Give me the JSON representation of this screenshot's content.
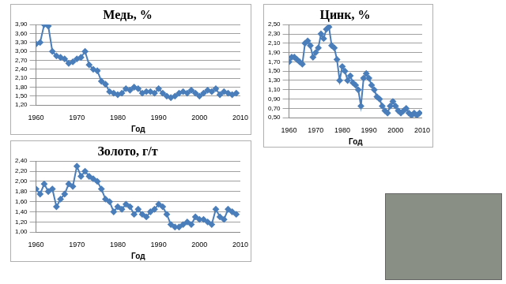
{
  "chart_data": [
    {
      "type": "line",
      "title": "Медь, %",
      "x_label": "Год",
      "x": [
        1960,
        1961,
        1962,
        1963,
        1964,
        1965,
        1966,
        1967,
        1968,
        1969,
        1970,
        1971,
        1972,
        1973,
        1974,
        1975,
        1976,
        1977,
        1978,
        1979,
        1980,
        1981,
        1982,
        1983,
        1984,
        1985,
        1986,
        1987,
        1988,
        1989,
        1990,
        1991,
        1992,
        1993,
        1994,
        1995,
        1996,
        1997,
        1998,
        1999,
        2000,
        2001,
        2002,
        2003,
        2004,
        2005,
        2006,
        2007,
        2008,
        2009
      ],
      "values": [
        3.25,
        3.3,
        3.9,
        3.85,
        3.0,
        2.85,
        2.8,
        2.75,
        2.6,
        2.65,
        2.75,
        2.8,
        3.0,
        2.55,
        2.4,
        2.35,
        2.0,
        1.9,
        1.65,
        1.6,
        1.55,
        1.6,
        1.75,
        1.7,
        1.8,
        1.75,
        1.6,
        1.65,
        1.65,
        1.6,
        1.75,
        1.6,
        1.5,
        1.45,
        1.5,
        1.6,
        1.65,
        1.6,
        1.7,
        1.6,
        1.5,
        1.6,
        1.7,
        1.65,
        1.75,
        1.55,
        1.65,
        1.6,
        1.55,
        1.6
      ],
      "color": "#4a7ebb",
      "marker": "diamond",
      "grid": "y",
      "xlim": [
        1960,
        2010
      ],
      "xticks": [
        1960,
        1970,
        1980,
        1990,
        2000,
        2010
      ],
      "ylim": [
        1.2,
        3.9
      ],
      "yticks": [
        {
          "value": 1.2,
          "label": "1,20"
        },
        {
          "value": 1.5,
          "label": "1,50"
        },
        {
          "value": 1.8,
          "label": "1,80"
        },
        {
          "value": 2.1,
          "label": "2,10"
        },
        {
          "value": 2.4,
          "label": "2,40"
        },
        {
          "value": 2.7,
          "label": "2,70"
        },
        {
          "value": 3.0,
          "label": "3,00"
        },
        {
          "value": 3.3,
          "label": "3,30"
        },
        {
          "value": 3.6,
          "label": "3,60"
        },
        {
          "value": 3.9,
          "label": "3,90"
        }
      ]
    },
    {
      "type": "line",
      "title": "Цинк, %",
      "x_label": "Год",
      "x": [
        1960,
        1961,
        1962,
        1963,
        1964,
        1965,
        1966,
        1967,
        1968,
        1969,
        1970,
        1971,
        1972,
        1973,
        1974,
        1975,
        1976,
        1977,
        1978,
        1979,
        1980,
        1981,
        1982,
        1983,
        1984,
        1985,
        1986,
        1987,
        1988,
        1989,
        1990,
        1991,
        1992,
        1993,
        1994,
        1995,
        1996,
        1997,
        1998,
        1999,
        2000,
        2001,
        2002,
        2003,
        2004,
        2005,
        2006,
        2007,
        2008,
        2009
      ],
      "values": [
        1.7,
        1.8,
        1.8,
        1.75,
        1.7,
        1.65,
        2.1,
        2.15,
        2.05,
        1.8,
        1.9,
        2.0,
        2.3,
        2.2,
        2.4,
        2.45,
        2.05,
        2.0,
        1.75,
        1.3,
        1.6,
        1.5,
        1.3,
        1.4,
        1.25,
        1.2,
        1.1,
        0.75,
        1.35,
        1.45,
        1.35,
        1.2,
        1.1,
        0.95,
        0.9,
        0.75,
        0.65,
        0.6,
        0.75,
        0.85,
        0.75,
        0.65,
        0.6,
        0.65,
        0.7,
        0.6,
        0.55,
        0.6,
        0.55,
        0.6
      ],
      "color": "#4a7ebb",
      "marker": "diamond",
      "grid": "y",
      "xlim": [
        1960,
        2010
      ],
      "xticks": [
        1960,
        1970,
        1980,
        1990,
        2000,
        2010
      ],
      "ylim": [
        0.5,
        2.5
      ],
      "yticks": [
        {
          "value": 0.5,
          "label": "0,50"
        },
        {
          "value": 0.7,
          "label": "0,70"
        },
        {
          "value": 0.9,
          "label": "0,90"
        },
        {
          "value": 1.1,
          "label": "1,10"
        },
        {
          "value": 1.3,
          "label": "1,30"
        },
        {
          "value": 1.5,
          "label": "1,50"
        },
        {
          "value": 1.7,
          "label": "1,70"
        },
        {
          "value": 1.9,
          "label": "1,90"
        },
        {
          "value": 2.1,
          "label": "2,10"
        },
        {
          "value": 2.3,
          "label": "2,30"
        },
        {
          "value": 2.5,
          "label": "2,50"
        }
      ]
    },
    {
      "type": "line",
      "title": "Золото, г/т",
      "x_label": "Год",
      "x": [
        1960,
        1961,
        1962,
        1963,
        1964,
        1965,
        1966,
        1967,
        1968,
        1969,
        1970,
        1971,
        1972,
        1973,
        1974,
        1975,
        1976,
        1977,
        1978,
        1979,
        1980,
        1981,
        1982,
        1983,
        1984,
        1985,
        1986,
        1987,
        1988,
        1989,
        1990,
        1991,
        1992,
        1993,
        1994,
        1995,
        1996,
        1997,
        1998,
        1999,
        2000,
        2001,
        2002,
        2003,
        2004,
        2005,
        2006,
        2007,
        2008,
        2009
      ],
      "values": [
        1.85,
        1.75,
        1.95,
        1.8,
        1.85,
        1.5,
        1.65,
        1.75,
        1.95,
        1.9,
        2.3,
        2.1,
        2.2,
        2.1,
        2.05,
        2.0,
        1.85,
        1.65,
        1.6,
        1.4,
        1.5,
        1.45,
        1.55,
        1.5,
        1.35,
        1.45,
        1.35,
        1.3,
        1.4,
        1.45,
        1.55,
        1.5,
        1.35,
        1.15,
        1.1,
        1.1,
        1.15,
        1.2,
        1.15,
        1.3,
        1.25,
        1.25,
        1.2,
        1.15,
        1.45,
        1.3,
        1.25,
        1.45,
        1.4,
        1.35
      ],
      "color": "#4a7ebb",
      "marker": "diamond",
      "grid": "y",
      "xlim": [
        1960,
        2010
      ],
      "xticks": [
        1960,
        1970,
        1980,
        1990,
        2000,
        2010
      ],
      "ylim": [
        1.0,
        2.4
      ],
      "yticks": [
        {
          "value": 1.0,
          "label": "1,00"
        },
        {
          "value": 1.2,
          "label": "1,20"
        },
        {
          "value": 1.4,
          "label": "1,40"
        },
        {
          "value": 1.6,
          "label": "1,60"
        },
        {
          "value": 1.8,
          "label": "1,80"
        },
        {
          "value": 2.0,
          "label": "2,00"
        },
        {
          "value": 2.2,
          "label": "2,20"
        },
        {
          "value": 2.4,
          "label": "2,40"
        }
      ]
    }
  ]
}
